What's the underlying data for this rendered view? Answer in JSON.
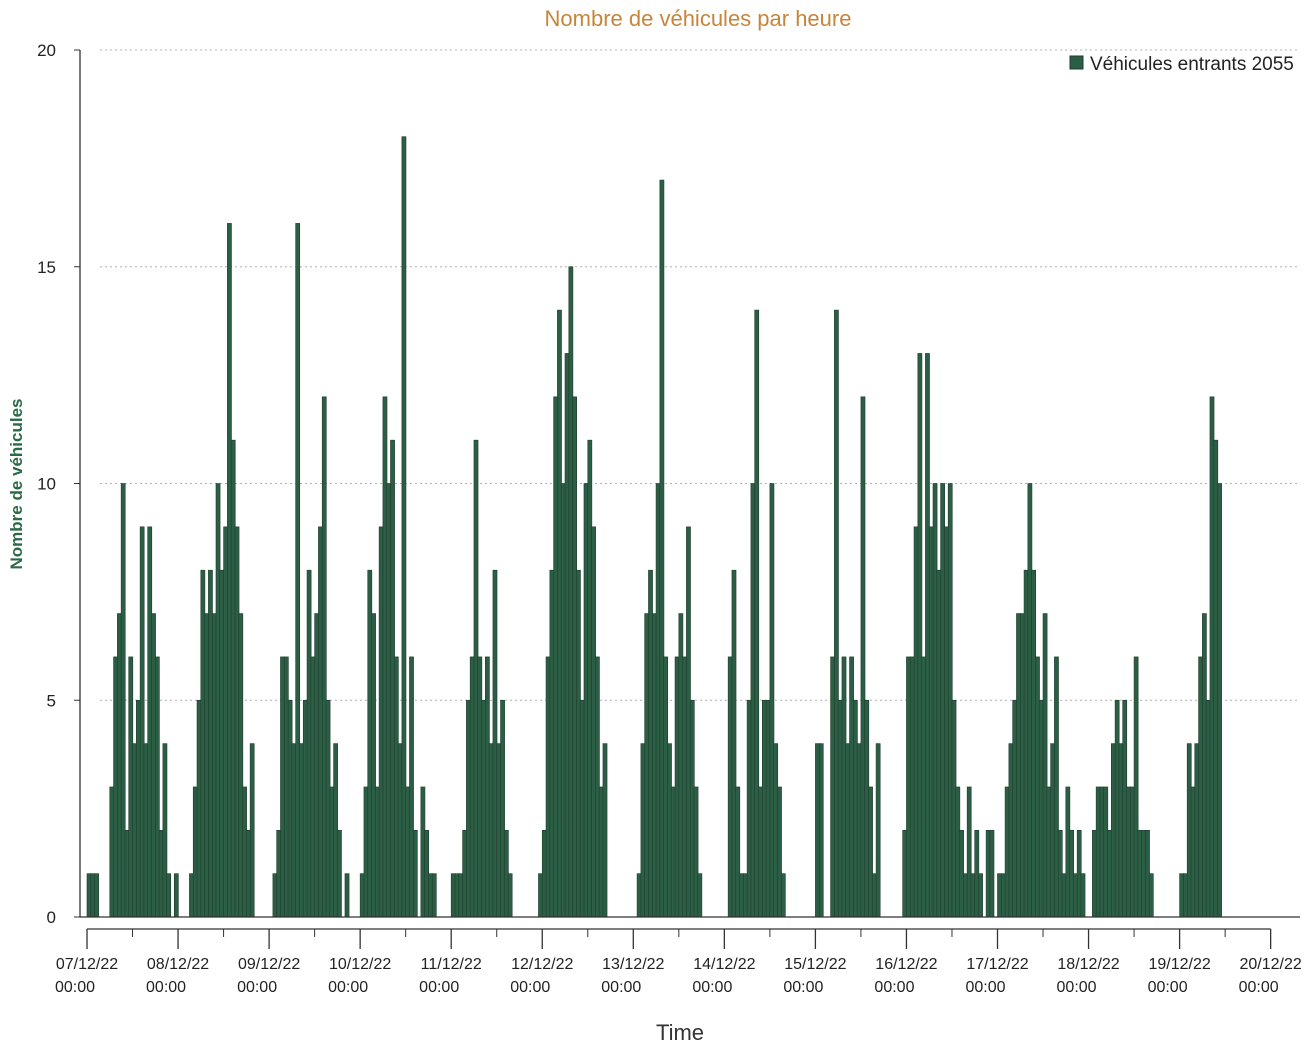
{
  "colors": {
    "bar": "#2c5e45",
    "bar_edge": "#1c3d2c",
    "title": "#c8853a",
    "ylabel": "#2a6a46",
    "grid": "#b0b0b0",
    "axis": "#333333"
  },
  "chart_data": {
    "type": "bar",
    "title": "Nombre de véhicules par heure",
    "xlabel": "Time",
    "ylabel": "Nombre de véhicules",
    "ylim": [
      0,
      20
    ],
    "y_ticks": [
      "0",
      "5",
      "10",
      "15",
      "20"
    ],
    "x_ticks": [
      {
        "date": "07/12/22",
        "time": "00:00"
      },
      {
        "date": "08/12/22",
        "time": "00:00"
      },
      {
        "date": "09/12/22",
        "time": "00:00"
      },
      {
        "date": "10/12/22",
        "time": "00:00"
      },
      {
        "date": "11/12/22",
        "time": "00:00"
      },
      {
        "date": "12/12/22",
        "time": "00:00"
      },
      {
        "date": "13/12/22",
        "time": "00:00"
      },
      {
        "date": "14/12/22",
        "time": "00:00"
      },
      {
        "date": "15/12/22",
        "time": "00:00"
      },
      {
        "date": "16/12/22",
        "time": "00:00"
      },
      {
        "date": "17/12/22",
        "time": "00:00"
      },
      {
        "date": "18/12/22",
        "time": "00:00"
      },
      {
        "date": "19/12/22",
        "time": "00:00"
      },
      {
        "date": "20/12/22",
        "time": "00:00"
      }
    ],
    "grid": "horizontal dotted",
    "legend_position": "top-right",
    "series": [
      {
        "name": "Véhicules entrants 2055",
        "days": [
          {
            "date": "07/12/22",
            "hourly": [
              1,
              1,
              1,
              0,
              0,
              0,
              3,
              6,
              7,
              10,
              2,
              6,
              4,
              5,
              9,
              4,
              9,
              7,
              6,
              2,
              4,
              1,
              0,
              1
            ]
          },
          {
            "date": "08/12/22",
            "hourly": [
              0,
              0,
              0,
              1,
              3,
              5,
              8,
              7,
              8,
              7,
              10,
              8,
              9,
              16,
              11,
              9,
              7,
              3,
              2,
              4,
              0,
              0,
              0,
              0
            ]
          },
          {
            "date": "09/12/22",
            "hourly": [
              0,
              1,
              2,
              6,
              6,
              5,
              4,
              16,
              4,
              5,
              8,
              6,
              7,
              9,
              12,
              5,
              3,
              4,
              2,
              0,
              1,
              0,
              0,
              0
            ]
          },
          {
            "date": "10/12/22",
            "hourly": [
              1,
              3,
              8,
              7,
              3,
              9,
              12,
              10,
              11,
              6,
              4,
              18,
              3,
              6,
              2,
              0,
              3,
              2,
              1,
              1,
              0,
              0,
              0,
              0
            ]
          },
          {
            "date": "11/12/22",
            "hourly": [
              1,
              1,
              1,
              2,
              5,
              6,
              11,
              6,
              5,
              6,
              4,
              8,
              4,
              5,
              2,
              1,
              0,
              0,
              0,
              0,
              0,
              0,
              0,
              1
            ]
          },
          {
            "date": "12/12/22",
            "hourly": [
              2,
              6,
              8,
              12,
              14,
              10,
              13,
              15,
              12,
              8,
              5,
              10,
              11,
              9,
              6,
              3,
              4,
              0,
              0,
              0,
              0,
              0,
              0,
              0
            ]
          },
          {
            "date": "13/12/22",
            "hourly": [
              0,
              1,
              4,
              7,
              8,
              7,
              10,
              17,
              6,
              4,
              3,
              6,
              7,
              6,
              9,
              5,
              3,
              1,
              0,
              0,
              0,
              0,
              0,
              0
            ]
          },
          {
            "date": "14/12/22",
            "hourly": [
              0,
              6,
              8,
              3,
              1,
              1,
              5,
              10,
              14,
              3,
              5,
              5,
              10,
              4,
              3,
              1,
              0,
              0,
              0,
              0,
              0,
              0,
              0,
              0
            ]
          },
          {
            "date": "15/12/22",
            "hourly": [
              4,
              4,
              0,
              0,
              6,
              14,
              5,
              6,
              4,
              6,
              5,
              4,
              12,
              5,
              3,
              1,
              4,
              0,
              0,
              0,
              0,
              0,
              0,
              2
            ]
          },
          {
            "date": "16/12/22",
            "hourly": [
              6,
              6,
              9,
              13,
              6,
              13,
              9,
              10,
              8,
              10,
              9,
              10,
              5,
              3,
              2,
              1,
              3,
              1,
              2,
              1,
              0,
              2,
              2,
              0
            ]
          },
          {
            "date": "17/12/22",
            "hourly": [
              1,
              1,
              3,
              4,
              5,
              7,
              7,
              8,
              10,
              8,
              6,
              5,
              7,
              3,
              4,
              6,
              2,
              1,
              3,
              2,
              1,
              2,
              1,
              0
            ]
          },
          {
            "date": "18/12/22",
            "hourly": [
              0,
              2,
              3,
              3,
              3,
              2,
              4,
              5,
              4,
              5,
              3,
              3,
              6,
              2,
              2,
              2,
              1,
              0,
              0,
              0,
              0,
              0,
              0,
              0
            ]
          },
          {
            "date": "19/12/22",
            "hourly": [
              1,
              1,
              4,
              3,
              4,
              6,
              7,
              5,
              12,
              11,
              10,
              0,
              0,
              0
            ]
          }
        ]
      }
    ]
  }
}
